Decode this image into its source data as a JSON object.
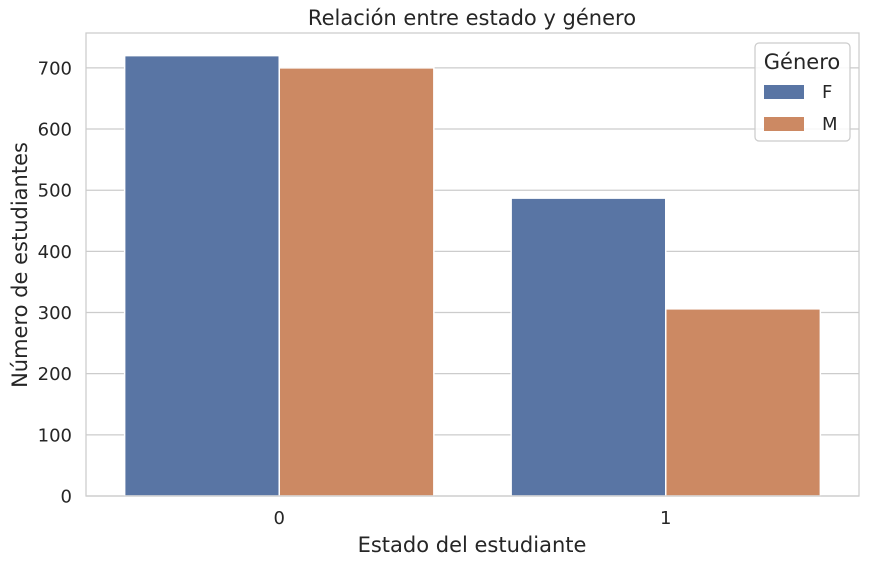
{
  "chart_data": {
    "type": "bar",
    "title": "Relación entre estado y género",
    "xlabel": "Estado del estudiante",
    "ylabel": "Número de estudiantes",
    "categories": [
      "0",
      "1"
    ],
    "series": [
      {
        "name": "F",
        "values": [
          720,
          487
        ],
        "color": "#5975a4"
      },
      {
        "name": "M",
        "values": [
          700,
          306
        ],
        "color": "#cc8963"
      }
    ],
    "ylim": [
      0,
      757
    ],
    "yticks": [
      0,
      100,
      200,
      300,
      400,
      500,
      600,
      700
    ],
    "grid": "horizontal",
    "legend": {
      "title": "Género",
      "placement": "top-right"
    }
  }
}
